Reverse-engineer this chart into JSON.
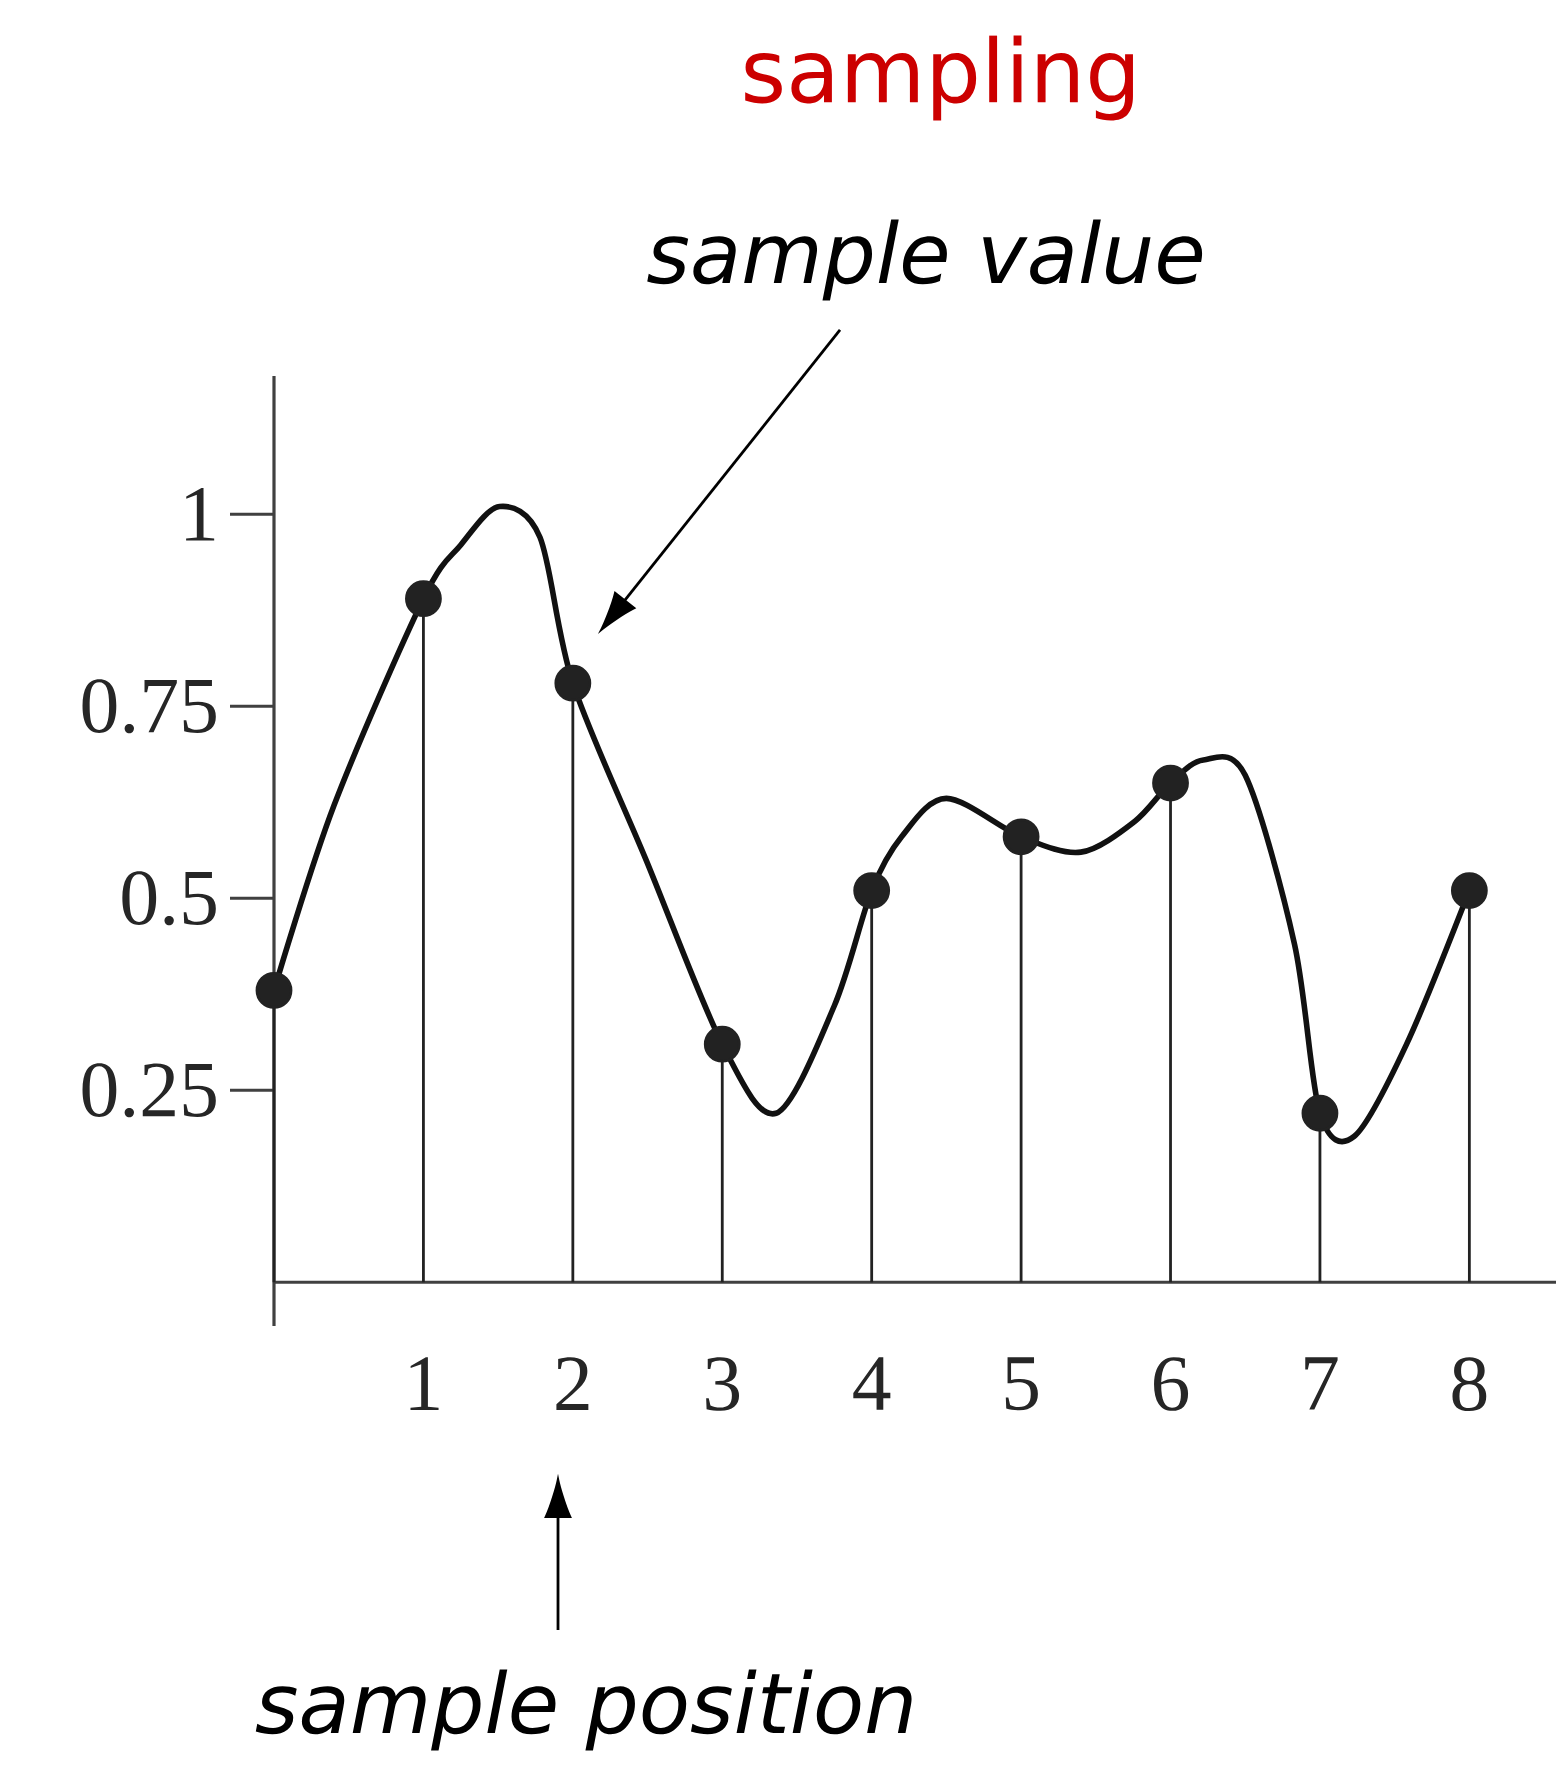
{
  "chart_data": {
    "type": "lollipop",
    "title": "sampling",
    "annotations": [
      "sample value",
      "sample position"
    ],
    "xlim": [
      0,
      8.58
    ],
    "ylim": [
      -0.057,
      1.18
    ],
    "xticks": [
      1,
      2,
      3,
      4,
      5,
      6,
      7,
      8
    ],
    "yticks": [
      0.25,
      0.5,
      0.75,
      1
    ],
    "series": [
      {
        "type": "line",
        "color": "#111111",
        "marker": "none",
        "x": [
          0,
          0.4,
          1,
          1.25,
          1.51,
          1.78,
          2,
          2.49,
          3,
          3.36,
          3.75,
          4,
          4.2,
          4.5,
          5,
          5.4,
          5.76,
          6,
          6.22,
          6.5,
          6.83,
          7,
          7.23,
          7.58,
          8
        ],
        "values": [
          0.38,
          0.62,
          0.89,
          0.96,
          1.01,
          0.97,
          0.78,
          0.55,
          0.31,
          0.22,
          0.36,
          0.51,
          0.58,
          0.63,
          0.58,
          0.56,
          0.6,
          0.65,
          0.68,
          0.66,
          0.44,
          0.22,
          0.19,
          0.31,
          0.51
        ]
      },
      {
        "color": "#222222",
        "marker": "circle",
        "x": [
          0,
          1,
          2,
          3,
          4,
          5,
          6,
          7,
          8
        ],
        "values": [
          0.38,
          0.89,
          0.78,
          0.31,
          0.51,
          0.58,
          0.65,
          0.22,
          0.51
        ]
      }
    ]
  }
}
